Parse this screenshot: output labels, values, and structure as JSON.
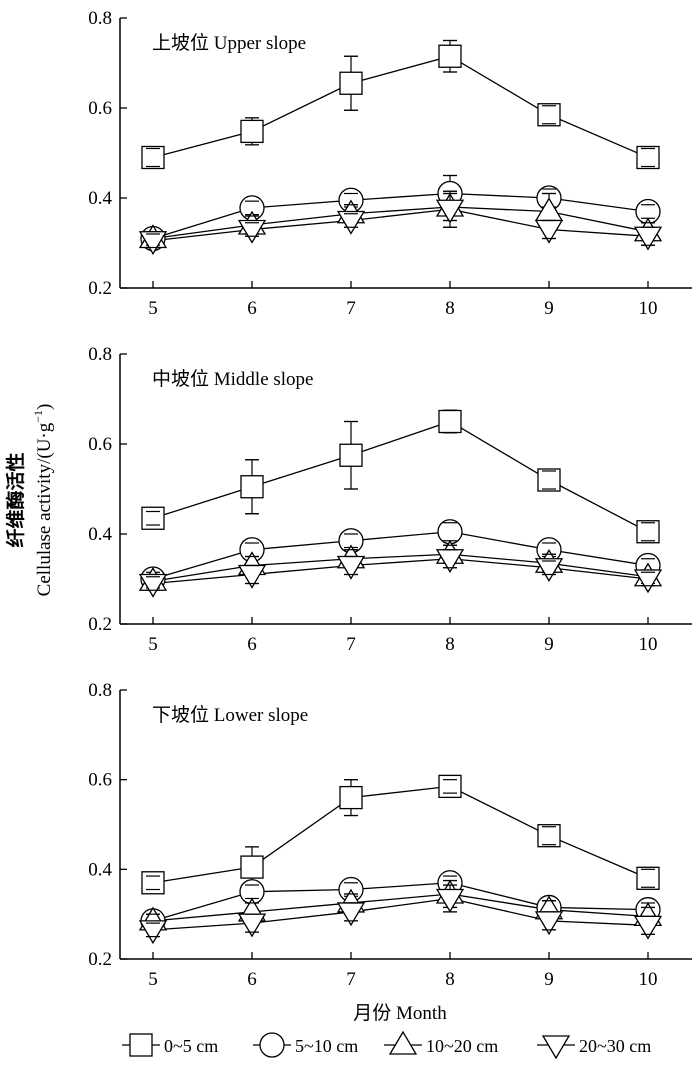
{
  "chart_data": {
    "type": "line",
    "ylabel_cn": "纤维酶活性",
    "ylabel_en": "Cellulase activity/(U·g",
    "ylabel_sup": "−1",
    "ylabel_end": ")",
    "xlabel": "月份  Month",
    "categories": [
      "5",
      "6",
      "7",
      "8",
      "9",
      "10"
    ],
    "ylim": [
      0.2,
      0.8
    ],
    "yticks": [
      "0.2",
      "0.4",
      "0.6",
      "0.8"
    ],
    "series_legend": [
      {
        "label": "0~5 cm",
        "marker": "square"
      },
      {
        "label": "5~10 cm",
        "marker": "circle"
      },
      {
        "label": "10~20 cm",
        "marker": "triangle-up"
      },
      {
        "label": "20~30 cm",
        "marker": "triangle-down"
      }
    ],
    "panels": [
      {
        "title": "上坡位  Upper slope",
        "series": [
          {
            "marker": "square",
            "values": [
              0.49,
              0.548,
              0.655,
              0.715,
              0.585,
              0.49
            ],
            "errors": [
              0.02,
              0.03,
              0.06,
              0.035,
              0.02,
              0.02
            ]
          },
          {
            "marker": "circle",
            "values": [
              0.31,
              0.378,
              0.395,
              0.41,
              0.4,
              0.37
            ],
            "errors": [
              0.015,
              0.015,
              0.015,
              0.04,
              0.02,
              0.015
            ]
          },
          {
            "marker": "triangle-up",
            "values": [
              0.31,
              0.34,
              0.365,
              0.38,
              0.37,
              0.325
            ],
            "errors": [
              0.015,
              0.02,
              0.02,
              0.03,
              0.04,
              0.02
            ]
          },
          {
            "marker": "triangle-down",
            "values": [
              0.305,
              0.33,
              0.35,
              0.375,
              0.33,
              0.315
            ],
            "errors": [
              0.015,
              0.015,
              0.015,
              0.04,
              0.02,
              0.02
            ]
          }
        ]
      },
      {
        "title": "中坡位  Middle slope",
        "series": [
          {
            "marker": "square",
            "values": [
              0.435,
              0.505,
              0.575,
              0.65,
              0.52,
              0.405
            ],
            "errors": [
              0.015,
              0.06,
              0.075,
              0.025,
              0.02,
              0.02
            ]
          },
          {
            "marker": "circle",
            "values": [
              0.3,
              0.365,
              0.385,
              0.405,
              0.365,
              0.33
            ],
            "errors": [
              0.015,
              0.015,
              0.015,
              0.02,
              0.015,
              0.015
            ]
          },
          {
            "marker": "triangle-up",
            "values": [
              0.295,
              0.33,
              0.345,
              0.355,
              0.335,
              0.305
            ],
            "errors": [
              0.015,
              0.02,
              0.02,
              0.02,
              0.02,
              0.015
            ]
          },
          {
            "marker": "triangle-down",
            "values": [
              0.29,
              0.31,
              0.33,
              0.345,
              0.325,
              0.3
            ],
            "errors": [
              0.015,
              0.02,
              0.02,
              0.02,
              0.015,
              0.015
            ]
          }
        ]
      },
      {
        "title": "下坡位  Lower slope",
        "series": [
          {
            "marker": "square",
            "values": [
              0.37,
              0.405,
              0.56,
              0.585,
              0.475,
              0.38
            ],
            "errors": [
              0.015,
              0.045,
              0.04,
              0.015,
              0.02,
              0.02
            ]
          },
          {
            "marker": "circle",
            "values": [
              0.285,
              0.35,
              0.355,
              0.37,
              0.315,
              0.31
            ],
            "errors": [
              0.015,
              0.015,
              0.015,
              0.015,
              0.015,
              0.015
            ]
          },
          {
            "marker": "triangle-up",
            "values": [
              0.285,
              0.305,
              0.325,
              0.345,
              0.31,
              0.295
            ],
            "errors": [
              0.015,
              0.02,
              0.02,
              0.03,
              0.02,
              0.02
            ]
          },
          {
            "marker": "triangle-down",
            "values": [
              0.265,
              0.28,
              0.305,
              0.335,
              0.285,
              0.275
            ],
            "errors": [
              0.015,
              0.02,
              0.02,
              0.03,
              0.02,
              0.02
            ]
          }
        ]
      }
    ]
  }
}
